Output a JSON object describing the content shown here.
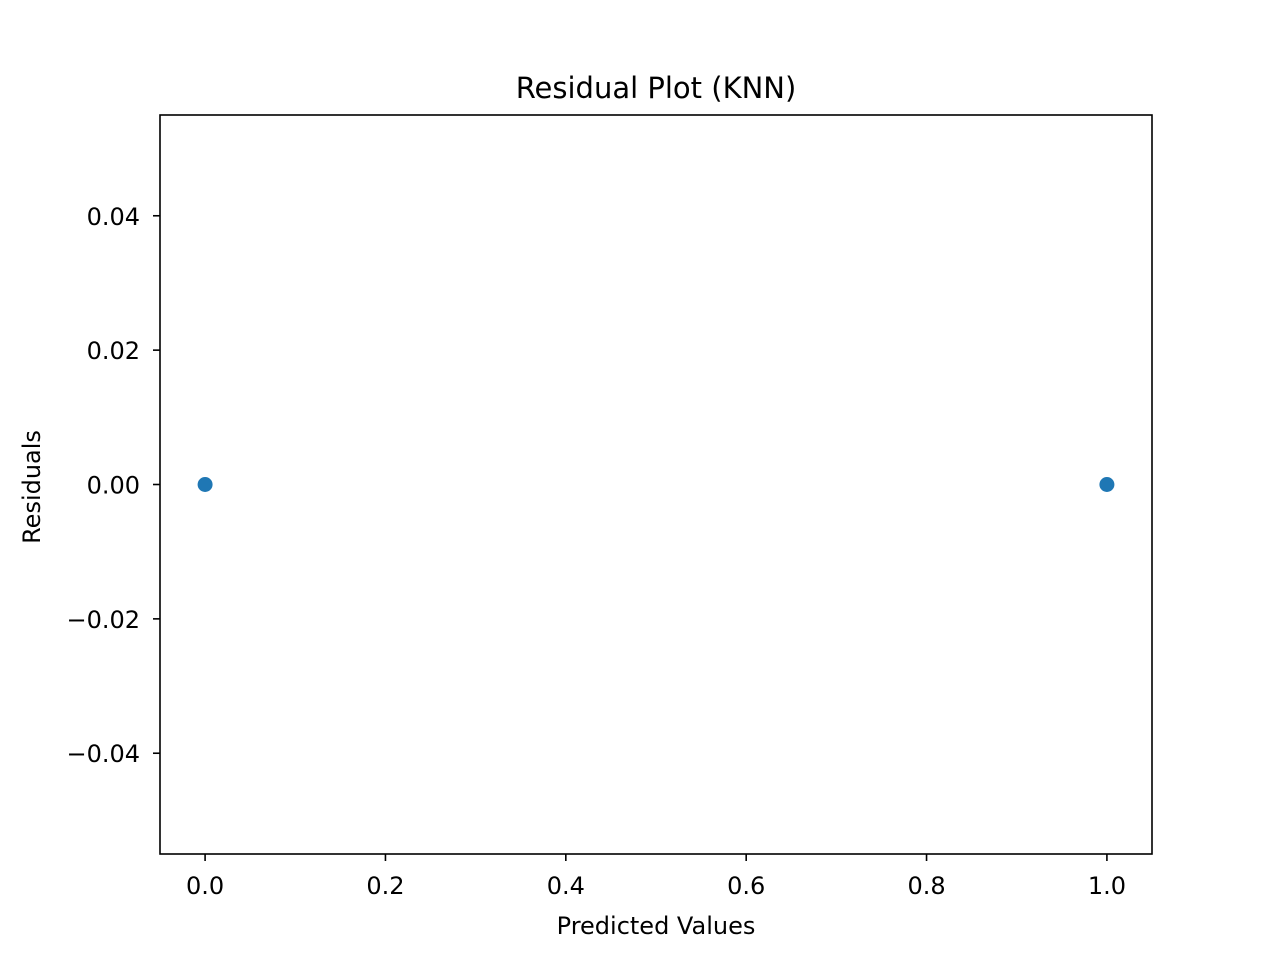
{
  "chart_data": {
    "type": "scatter",
    "title": "Residual Plot (KNN)",
    "xlabel": "Predicted Values",
    "ylabel": "Residuals",
    "xlim": [
      -0.05,
      1.05
    ],
    "ylim": [
      -0.055,
      0.055
    ],
    "x_ticks": [
      0.0,
      0.2,
      0.4,
      0.6,
      0.8,
      1.0
    ],
    "x_tick_labels": [
      "0.0",
      "0.2",
      "0.4",
      "0.6",
      "0.8",
      "1.0"
    ],
    "y_ticks": [
      0.04,
      0.02,
      0.0,
      -0.02,
      -0.04
    ],
    "y_tick_labels": [
      "0.04",
      "0.02",
      "0.00",
      "−0.02",
      "−0.04"
    ],
    "grid": false,
    "series": [
      {
        "color": "#1f77b4",
        "points": [
          {
            "x": 0.0,
            "y": 0.0
          },
          {
            "x": 1.0,
            "y": 0.0
          }
        ]
      }
    ]
  }
}
